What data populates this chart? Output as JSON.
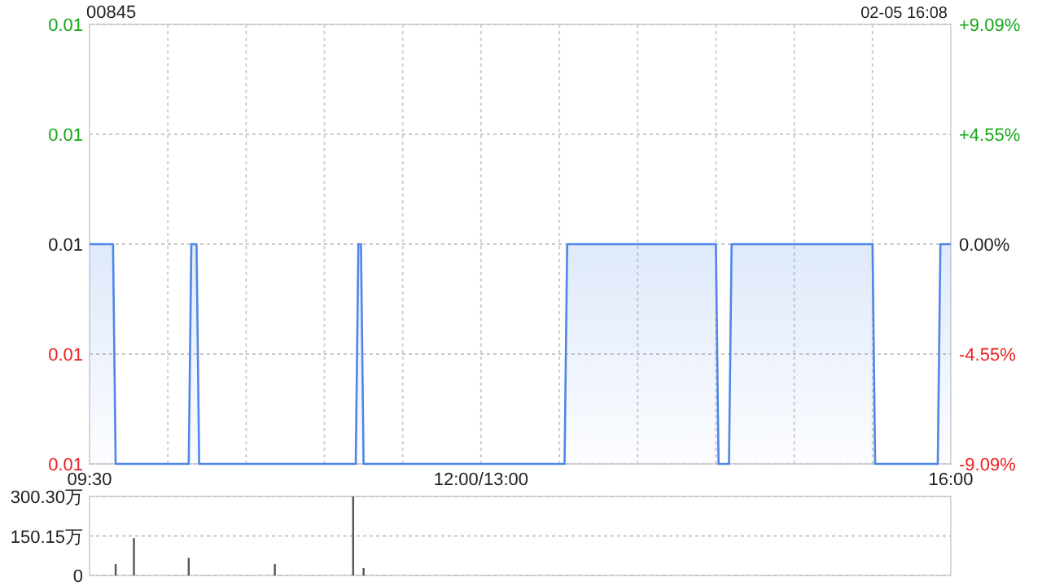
{
  "chart_data": [
    {
      "type": "area",
      "title": "00845",
      "annotations": [
        "02-05 16:08"
      ],
      "categories": [
        "09:30",
        null,
        null,
        null,
        null,
        null,
        null,
        null,
        null,
        null,
        null,
        null,
        null,
        null,
        null,
        null,
        null,
        null,
        null,
        null,
        null,
        null,
        null,
        null,
        null,
        null,
        null,
        null,
        null,
        null,
        null,
        null,
        null,
        null,
        null,
        null,
        null,
        null,
        null,
        null,
        null,
        null,
        null,
        null,
        null,
        null,
        null,
        null,
        null,
        null,
        null,
        null,
        null,
        null,
        null,
        null,
        null,
        null,
        null,
        null,
        null,
        null,
        null,
        null,
        null,
        null,
        null,
        null,
        null,
        null,
        null,
        null,
        null,
        null,
        null,
        null,
        null,
        null,
        null,
        null,
        null,
        null,
        null,
        null,
        null,
        null,
        null,
        null,
        null,
        null,
        null,
        null,
        null,
        null,
        null,
        null,
        null,
        null,
        null,
        null,
        null,
        null,
        null,
        null,
        null,
        null,
        null,
        null,
        null,
        null,
        null,
        null,
        null,
        null,
        null,
        null,
        null,
        null,
        null,
        null,
        null,
        null,
        null,
        null,
        null,
        null,
        null,
        null,
        null,
        null,
        null,
        null,
        null,
        null,
        null,
        null,
        null,
        null,
        null,
        null,
        null,
        null,
        null,
        null,
        null,
        null,
        null,
        null,
        null,
        null,
        "12:00/13:00",
        null,
        null,
        null,
        null,
        null,
        null,
        null,
        null,
        null,
        null,
        null,
        null,
        null,
        null,
        null,
        null,
        null,
        null,
        null,
        null,
        null,
        null,
        null,
        null,
        null,
        null,
        null,
        null,
        null,
        null,
        null,
        null,
        null,
        null,
        null,
        null,
        null,
        null,
        null,
        null,
        null,
        null,
        null,
        null,
        null,
        null,
        null,
        null,
        null,
        null,
        null,
        null,
        null,
        null,
        null,
        null,
        null,
        null,
        null,
        null,
        null,
        null,
        null,
        null,
        null,
        null,
        null,
        null,
        null,
        null,
        null,
        null,
        null,
        null,
        null,
        null,
        null,
        null,
        null,
        null,
        null,
        null,
        null,
        null,
        null,
        null,
        null,
        null,
        null,
        null,
        null,
        null,
        null,
        null,
        null,
        null,
        null,
        null,
        null,
        null,
        null,
        null,
        null,
        null,
        null,
        null,
        null,
        null,
        null,
        null,
        null,
        null,
        null,
        null,
        null,
        null,
        null,
        null,
        null,
        null,
        null,
        null,
        null,
        null,
        null,
        null,
        null,
        null,
        null,
        null,
        null,
        null,
        null,
        null,
        null,
        null,
        null,
        null,
        null,
        null,
        null,
        null,
        null,
        null,
        null,
        null,
        null,
        null,
        null,
        null,
        null,
        null,
        null,
        null,
        null,
        null,
        null,
        null,
        null,
        null,
        null,
        null,
        null,
        null,
        null,
        null,
        null,
        null,
        null,
        null,
        null,
        null,
        null,
        null,
        null,
        null,
        null,
        null,
        null,
        "16:00"
      ],
      "values": [
        0.011,
        0.011,
        0.011,
        0.011,
        0.011,
        0.011,
        0.011,
        0.011,
        0.011,
        0.011,
        0.01,
        0.01,
        0.01,
        0.01,
        0.01,
        0.01,
        0.01,
        0.01,
        0.01,
        0.01,
        0.01,
        0.01,
        0.01,
        0.01,
        0.01,
        0.01,
        0.01,
        0.01,
        0.01,
        0.01,
        0.01,
        0.01,
        0.01,
        0.01,
        0.01,
        0.01,
        0.01,
        0.01,
        0.01,
        0.011,
        0.011,
        0.011,
        0.01,
        0.01,
        0.01,
        0.01,
        0.01,
        0.01,
        0.01,
        0.01,
        0.01,
        0.01,
        0.01,
        0.01,
        0.01,
        0.01,
        0.01,
        0.01,
        0.01,
        0.01,
        0.01,
        0.01,
        0.01,
        0.01,
        0.01,
        0.01,
        0.01,
        0.01,
        0.01,
        0.01,
        0.01,
        0.01,
        0.01,
        0.01,
        0.01,
        0.01,
        0.01,
        0.01,
        0.01,
        0.01,
        0.01,
        0.01,
        0.01,
        0.01,
        0.01,
        0.01,
        0.01,
        0.01,
        0.01,
        0.01,
        0.01,
        0.01,
        0.01,
        0.01,
        0.01,
        0.01,
        0.01,
        0.01,
        0.01,
        0.01,
        0.01,
        0.01,
        0.01,
        0.011,
        0.011,
        0.01,
        0.01,
        0.01,
        0.01,
        0.01,
        0.01,
        0.01,
        0.01,
        0.01,
        0.01,
        0.01,
        0.01,
        0.01,
        0.01,
        0.01,
        0.01,
        0.01,
        0.01,
        0.01,
        0.01,
        0.01,
        0.01,
        0.01,
        0.01,
        0.01,
        0.01,
        0.01,
        0.01,
        0.01,
        0.01,
        0.01,
        0.01,
        0.01,
        0.01,
        0.01,
        0.01,
        0.01,
        0.01,
        0.01,
        0.01,
        0.01,
        0.01,
        0.01,
        0.01,
        0.01,
        0.01,
        0.01,
        0.01,
        0.01,
        0.01,
        0.01,
        0.01,
        0.01,
        0.01,
        0.01,
        0.01,
        0.01,
        0.01,
        0.01,
        0.01,
        0.01,
        0.01,
        0.01,
        0.01,
        0.01,
        0.01,
        0.01,
        0.01,
        0.01,
        0.01,
        0.01,
        0.01,
        0.01,
        0.01,
        0.01,
        0.01,
        0.01,
        0.01,
        0.011,
        0.011,
        0.011,
        0.011,
        0.011,
        0.011,
        0.011,
        0.011,
        0.011,
        0.011,
        0.011,
        0.011,
        0.011,
        0.011,
        0.011,
        0.011,
        0.011,
        0.011,
        0.011,
        0.011,
        0.011,
        0.011,
        0.011,
        0.011,
        0.011,
        0.011,
        0.011,
        0.011,
        0.011,
        0.011,
        0.011,
        0.011,
        0.011,
        0.011,
        0.011,
        0.011,
        0.011,
        0.011,
        0.011,
        0.011,
        0.011,
        0.011,
        0.011,
        0.011,
        0.011,
        0.011,
        0.011,
        0.011,
        0.011,
        0.011,
        0.011,
        0.011,
        0.011,
        0.011,
        0.011,
        0.011,
        0.011,
        0.011,
        0.01,
        0.01,
        0.01,
        0.01,
        0.01,
        0.011,
        0.011,
        0.011,
        0.011,
        0.011,
        0.011,
        0.011,
        0.011,
        0.011,
        0.011,
        0.011,
        0.011,
        0.011,
        0.011,
        0.011,
        0.011,
        0.011,
        0.011,
        0.011,
        0.011,
        0.011,
        0.011,
        0.011,
        0.011,
        0.011,
        0.011,
        0.011,
        0.011,
        0.011,
        0.011,
        0.011,
        0.011,
        0.011,
        0.011,
        0.011,
        0.011,
        0.011,
        0.011,
        0.011,
        0.011,
        0.011,
        0.011,
        0.011,
        0.011,
        0.011,
        0.011,
        0.011,
        0.011,
        0.011,
        0.011,
        0.011,
        0.011,
        0.011,
        0.011,
        0.011,
        0.01,
        0.01,
        0.01,
        0.01,
        0.01,
        0.01,
        0.01,
        0.01,
        0.01,
        0.01,
        0.01,
        0.01,
        0.01,
        0.01,
        0.01,
        0.01,
        0.01,
        0.01,
        0.01,
        0.01,
        0.01,
        0.01,
        0.01,
        0.01,
        0.01,
        0.011,
        0.011,
        0.011,
        0.011,
        0.011
      ],
      "color": "#4f86e8",
      "ylim": [
        0.01,
        0.012
      ],
      "yticks": [
        {
          "value": 0.01,
          "label": "0.01"
        },
        {
          "value": 0.0105,
          "label": "0.01"
        },
        {
          "value": 0.011,
          "label": "0.01"
        },
        {
          "value": 0.0115,
          "label": "0.01"
        },
        {
          "value": 0.012,
          "label": "0.01"
        }
      ],
      "y2lim": [
        -9.09,
        9.09
      ],
      "y2ticks": [
        {
          "value": -9.09,
          "label": "-9.09%"
        },
        {
          "value": -4.55,
          "label": "-4.55%"
        },
        {
          "value": 0,
          "label": "0.00%"
        },
        {
          "value": 4.55,
          "label": "+4.55%"
        },
        {
          "value": 9.09,
          "label": "+9.09%"
        }
      ],
      "grid": true
    },
    {
      "type": "bar",
      "categories": [
        null,
        null,
        null,
        null,
        null,
        null,
        null,
        null,
        null,
        null,
        null,
        null,
        null,
        null,
        null,
        null,
        null,
        null,
        null,
        null,
        null,
        null,
        null,
        null,
        null,
        null,
        null,
        null,
        null,
        null,
        null,
        null,
        null,
        null,
        null,
        null,
        null,
        null,
        null,
        null,
        null,
        null,
        null,
        null,
        null,
        null,
        null,
        null,
        null,
        null,
        null,
        null,
        null,
        null,
        null,
        null,
        null,
        null,
        null,
        null,
        null,
        null,
        null,
        null,
        null,
        null,
        null,
        null,
        null,
        null,
        null,
        null,
        null,
        null,
        null,
        null,
        null,
        null,
        null,
        null,
        null,
        null,
        null,
        null,
        null,
        null,
        null,
        null,
        null,
        null,
        null,
        null,
        null,
        null,
        null,
        null,
        null,
        null,
        null,
        null,
        null,
        null,
        null,
        null,
        null,
        null,
        null,
        null,
        null,
        null,
        null,
        null,
        null,
        null,
        null,
        null,
        null,
        null,
        null,
        null,
        null,
        null,
        null,
        null,
        null,
        null,
        null,
        null,
        null,
        null,
        null,
        null,
        null,
        null,
        null,
        null,
        null,
        null,
        null,
        null,
        null,
        null,
        null,
        null,
        null,
        null,
        null,
        null,
        null,
        null,
        null,
        null,
        null,
        null,
        null,
        null,
        null,
        null,
        null,
        null,
        null,
        null,
        null,
        null,
        null,
        null,
        null,
        null,
        null,
        null,
        null,
        null,
        null,
        null,
        null,
        null,
        null,
        null,
        null,
        null,
        null,
        null,
        null,
        null,
        null,
        null,
        null,
        null,
        null,
        null,
        null,
        null,
        null,
        null,
        null,
        null,
        null,
        null,
        null,
        null,
        null,
        null,
        null,
        null,
        null,
        null,
        null,
        null,
        null,
        null,
        null,
        null,
        null,
        null,
        null,
        null,
        null,
        null,
        null,
        null,
        null,
        null,
        null,
        null,
        null,
        null,
        null,
        null,
        null,
        null,
        null,
        null,
        null,
        null,
        null,
        null,
        null,
        null,
        null,
        null,
        null,
        null,
        null,
        null,
        null,
        null,
        null,
        null,
        null,
        null,
        null,
        null,
        null,
        null,
        null,
        null,
        null,
        null,
        null,
        null,
        null,
        null,
        null,
        null,
        null,
        null,
        null,
        null,
        null,
        null,
        null,
        null,
        null,
        null,
        null,
        null,
        null,
        null,
        null,
        null,
        null,
        null,
        null,
        null,
        null,
        null,
        null,
        null,
        null,
        null,
        null,
        null,
        null,
        null,
        null,
        null,
        null,
        null,
        null,
        null,
        null,
        null,
        null,
        null,
        null,
        null,
        null,
        null,
        null,
        null,
        null,
        null,
        null,
        null,
        null,
        null,
        null,
        null,
        null,
        null,
        null,
        null,
        null,
        null,
        null,
        null,
        null,
        null,
        null,
        null,
        null
      ],
      "values": [
        null,
        null,
        null,
        null,
        null,
        null,
        null,
        null,
        null,
        null,
        43,
        null,
        null,
        null,
        null,
        null,
        null,
        142,
        null,
        null,
        null,
        null,
        null,
        null,
        null,
        null,
        null,
        null,
        null,
        null,
        null,
        null,
        null,
        null,
        null,
        null,
        null,
        null,
        67,
        null,
        null,
        null,
        null,
        null,
        null,
        null,
        null,
        null,
        null,
        null,
        null,
        null,
        null,
        null,
        null,
        null,
        null,
        null,
        null,
        null,
        null,
        null,
        null,
        null,
        null,
        null,
        null,
        null,
        null,
        null,
        null,
        43,
        null,
        null,
        null,
        null,
        null,
        null,
        null,
        null,
        null,
        null,
        null,
        null,
        null,
        null,
        null,
        null,
        null,
        null,
        null,
        null,
        null,
        null,
        null,
        null,
        null,
        null,
        null,
        null,
        null,
        300,
        null,
        null,
        null,
        28,
        null,
        null,
        null,
        null,
        null,
        null,
        null,
        null,
        null,
        null,
        null,
        null,
        null,
        null,
        null,
        null,
        null,
        null,
        null,
        null,
        null,
        null,
        null,
        null,
        null,
        null,
        null,
        null,
        null,
        null,
        null,
        null,
        null,
        null,
        null,
        null,
        null,
        null,
        null,
        null,
        null,
        null,
        null,
        null,
        null,
        null,
        null,
        null,
        null,
        null,
        null,
        null,
        null,
        null,
        null,
        null,
        null,
        null,
        null,
        null,
        null,
        null,
        null,
        null,
        null,
        null,
        null,
        null,
        null,
        null,
        null,
        null,
        null,
        null,
        null,
        null,
        null,
        null,
        null,
        null,
        null,
        null,
        null,
        null,
        null,
        null,
        null,
        null,
        null,
        null,
        null,
        null,
        null,
        null,
        null,
        null,
        null,
        null,
        null,
        null,
        null,
        null,
        null,
        null,
        null,
        null,
        null,
        null,
        null,
        null,
        null,
        null,
        null,
        null,
        null,
        null,
        null,
        null,
        null,
        null,
        null,
        null,
        null,
        null,
        null,
        null,
        null,
        null,
        null,
        null,
        null,
        null,
        null,
        null,
        null,
        null,
        null,
        null,
        null,
        null,
        null,
        null,
        null,
        null,
        null,
        null,
        null,
        null,
        null,
        null,
        null,
        null,
        null,
        null,
        null,
        null,
        null,
        null,
        null,
        null,
        null,
        null,
        null,
        null,
        null,
        null,
        null,
        null,
        null,
        null,
        null,
        null,
        null,
        null,
        null,
        null,
        null,
        null,
        null,
        null,
        null,
        null,
        null,
        null,
        null,
        null,
        null,
        null,
        null,
        null,
        null,
        null,
        null,
        null,
        null,
        null,
        null,
        null,
        null,
        null,
        null,
        null,
        null,
        null,
        null,
        null,
        null,
        null,
        null,
        null,
        null,
        null,
        null,
        null,
        null,
        null,
        null,
        null,
        null,
        null,
        null,
        null,
        null,
        null,
        null
      ],
      "color": "#555555",
      "ylim": [
        0,
        300.3
      ],
      "yticks": [
        {
          "value": 0,
          "label": "0"
        },
        {
          "value": 150.15,
          "label": "150.15万"
        },
        {
          "value": 300.3,
          "label": "300.30万"
        }
      ],
      "tick_labels": "y",
      "grid": "y"
    }
  ]
}
